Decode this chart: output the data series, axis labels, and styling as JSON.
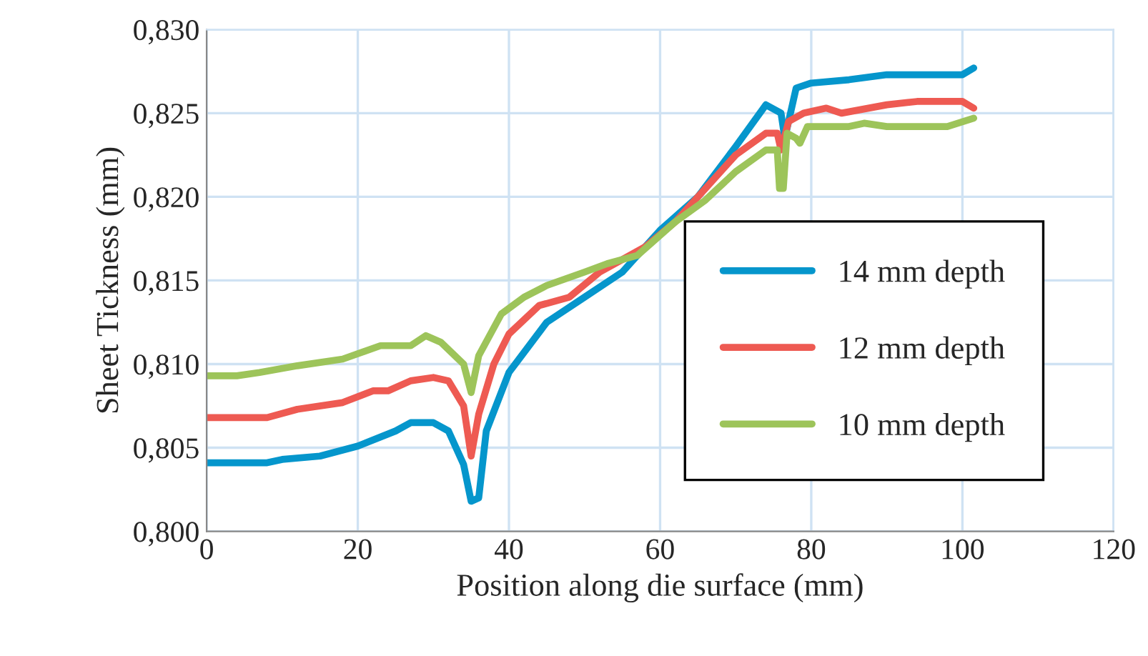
{
  "chart_data": {
    "type": "line",
    "xlabel": "Position along die surface (mm)",
    "ylabel": "Sheet Tickness (mm)",
    "xlim": [
      0,
      120
    ],
    "xticks": [
      0,
      20,
      40,
      60,
      80,
      100,
      120
    ],
    "ylim": [
      0.8,
      0.83
    ],
    "yticks": [
      {
        "value": 0.8,
        "label": "0,800"
      },
      {
        "value": 0.805,
        "label": "0,805"
      },
      {
        "value": 0.81,
        "label": "0,810"
      },
      {
        "value": 0.815,
        "label": "0,815"
      },
      {
        "value": 0.82,
        "label": "0,820"
      },
      {
        "value": 0.825,
        "label": "0,825"
      },
      {
        "value": 0.83,
        "label": "0,830"
      }
    ],
    "grid": true,
    "legend": "right",
    "line_style": "solid",
    "marker": "none",
    "series": [
      {
        "name": "14 mm depth",
        "color": "#0596cc",
        "x": [
          0,
          8,
          10,
          15,
          20,
          25,
          27,
          30,
          32,
          34,
          35,
          36,
          37,
          40,
          45,
          50,
          55,
          60,
          65,
          70,
          74,
          76,
          76.5,
          78,
          80,
          85,
          90,
          100,
          101.5
        ],
        "values": [
          0.8041,
          0.8041,
          0.8043,
          0.8045,
          0.8051,
          0.806,
          0.8065,
          0.8065,
          0.806,
          0.804,
          0.8018,
          0.802,
          0.806,
          0.8095,
          0.8125,
          0.814,
          0.8155,
          0.818,
          0.82,
          0.823,
          0.8255,
          0.825,
          0.8235,
          0.8265,
          0.8268,
          0.827,
          0.8273,
          0.8273,
          0.8277
        ]
      },
      {
        "name": "12 mm depth",
        "color": "#ee5a52",
        "x": [
          0,
          8,
          12,
          18,
          22,
          24,
          27,
          30,
          32,
          34,
          35,
          36,
          38,
          40,
          44,
          48,
          52,
          58,
          62,
          66,
          70,
          74,
          75.5,
          76,
          77,
          79,
          82,
          84,
          90,
          94,
          100,
          101.5
        ],
        "values": [
          0.8068,
          0.8068,
          0.8073,
          0.8077,
          0.8084,
          0.8084,
          0.809,
          0.8092,
          0.809,
          0.8075,
          0.8045,
          0.807,
          0.81,
          0.8118,
          0.8135,
          0.814,
          0.8155,
          0.817,
          0.8185,
          0.8205,
          0.8225,
          0.8238,
          0.8238,
          0.8228,
          0.8245,
          0.825,
          0.8253,
          0.825,
          0.8255,
          0.8257,
          0.8257,
          0.8253
        ]
      },
      {
        "name": "10 mm depth",
        "color": "#9dc45a",
        "x": [
          0,
          4,
          7,
          12,
          18,
          23,
          27,
          29,
          31,
          34,
          35,
          36,
          39,
          42,
          45,
          50,
          53,
          57,
          62,
          66,
          70,
          74,
          75.5,
          75.8,
          76.3,
          76.8,
          78,
          78.5,
          79.5,
          85,
          87,
          90,
          98,
          101.5
        ],
        "values": [
          0.8093,
          0.8093,
          0.8095,
          0.8099,
          0.8103,
          0.8111,
          0.8111,
          0.8117,
          0.8113,
          0.81,
          0.8083,
          0.8105,
          0.813,
          0.814,
          0.8147,
          0.8155,
          0.816,
          0.8165,
          0.8185,
          0.8198,
          0.8215,
          0.8228,
          0.8228,
          0.8205,
          0.8205,
          0.8238,
          0.8235,
          0.8232,
          0.8242,
          0.8242,
          0.8244,
          0.8242,
          0.8242,
          0.8247
        ]
      }
    ]
  }
}
